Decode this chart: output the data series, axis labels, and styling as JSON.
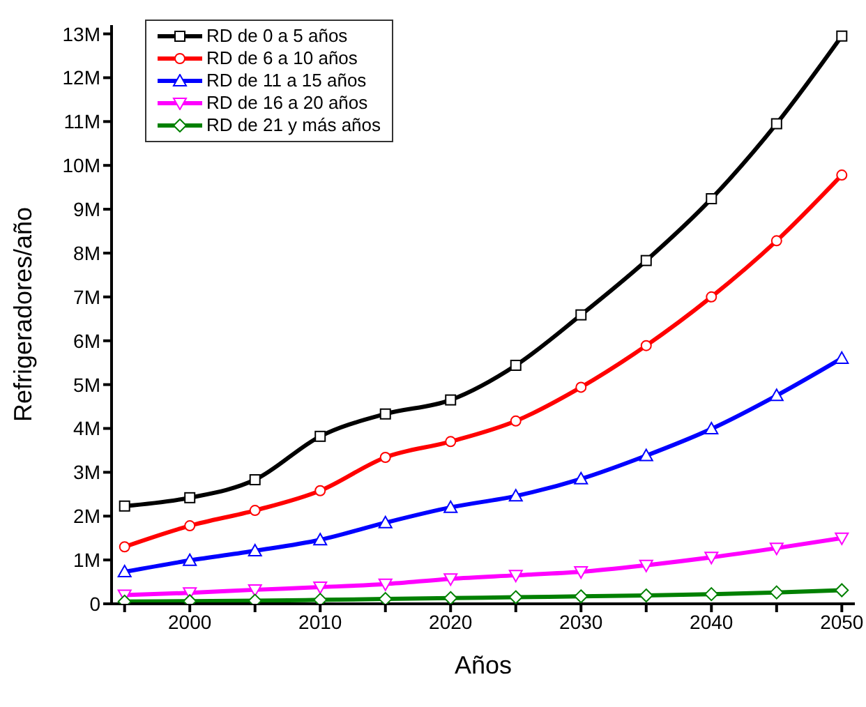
{
  "chart_data": {
    "type": "line",
    "xlabel": "Años",
    "ylabel": "Refrigeradores/año",
    "x": [
      1995,
      2000,
      2005,
      2010,
      2015,
      2020,
      2025,
      2030,
      2035,
      2040,
      2045,
      2050
    ],
    "series": [
      {
        "name": "RD de 0 a 5 años",
        "color": "#000000",
        "marker": "square",
        "values": [
          2230000,
          2420000,
          2830000,
          3820000,
          4330000,
          4650000,
          5440000,
          6590000,
          7830000,
          9240000,
          10950000,
          12950000
        ]
      },
      {
        "name": "RD de 6 a 10 años",
        "color": "#ff0000",
        "marker": "circle",
        "values": [
          1300000,
          1780000,
          2130000,
          2580000,
          3340000,
          3700000,
          4170000,
          4940000,
          5890000,
          7000000,
          8280000,
          9780000
        ]
      },
      {
        "name": "RD de 11 a 15 años",
        "color": "#0000ff",
        "marker": "triangle",
        "values": [
          730000,
          990000,
          1210000,
          1460000,
          1850000,
          2200000,
          2460000,
          2850000,
          3380000,
          3990000,
          4750000,
          5600000
        ]
      },
      {
        "name": "RD de 16 a 20 años",
        "color": "#ff00ff",
        "marker": "triangle-down",
        "values": [
          200000,
          250000,
          320000,
          380000,
          450000,
          570000,
          650000,
          730000,
          880000,
          1060000,
          1270000,
          1500000
        ]
      },
      {
        "name": "RD de 21 y más años",
        "color": "#008000",
        "marker": "diamond",
        "values": [
          50000,
          60000,
          70000,
          90000,
          110000,
          130000,
          150000,
          170000,
          190000,
          220000,
          260000,
          310000
        ]
      }
    ],
    "xlim": [
      1994,
      2051
    ],
    "xticks": [
      {
        "value": 1995,
        "label": null
      },
      2000,
      {
        "value": 2005,
        "label": null
      },
      2010,
      {
        "value": 2015,
        "label": null
      },
      2020,
      {
        "value": 2025,
        "label": null
      },
      2030,
      {
        "value": 2035,
        "label": null
      },
      2040,
      {
        "value": 2045,
        "label": null
      },
      2050
    ],
    "ylim": [
      0,
      13200000
    ],
    "yticks": [
      0,
      {
        "value": 1000000,
        "label": "1M"
      },
      {
        "value": 2000000,
        "label": "2M"
      },
      {
        "value": 3000000,
        "label": "3M"
      },
      {
        "value": 4000000,
        "label": "4M"
      },
      {
        "value": 5000000,
        "label": "5M"
      },
      {
        "value": 6000000,
        "label": "6M"
      },
      {
        "value": 7000000,
        "label": "7M"
      },
      {
        "value": 8000000,
        "label": "8M"
      },
      {
        "value": 9000000,
        "label": "9M"
      },
      {
        "value": 10000000,
        "label": "10M"
      },
      {
        "value": 11000000,
        "label": "11M"
      },
      {
        "value": 12000000,
        "label": "12M"
      },
      {
        "value": 13000000,
        "label": "13M"
      }
    ],
    "grid": false,
    "legend": "top left",
    "line_style": "solid"
  }
}
